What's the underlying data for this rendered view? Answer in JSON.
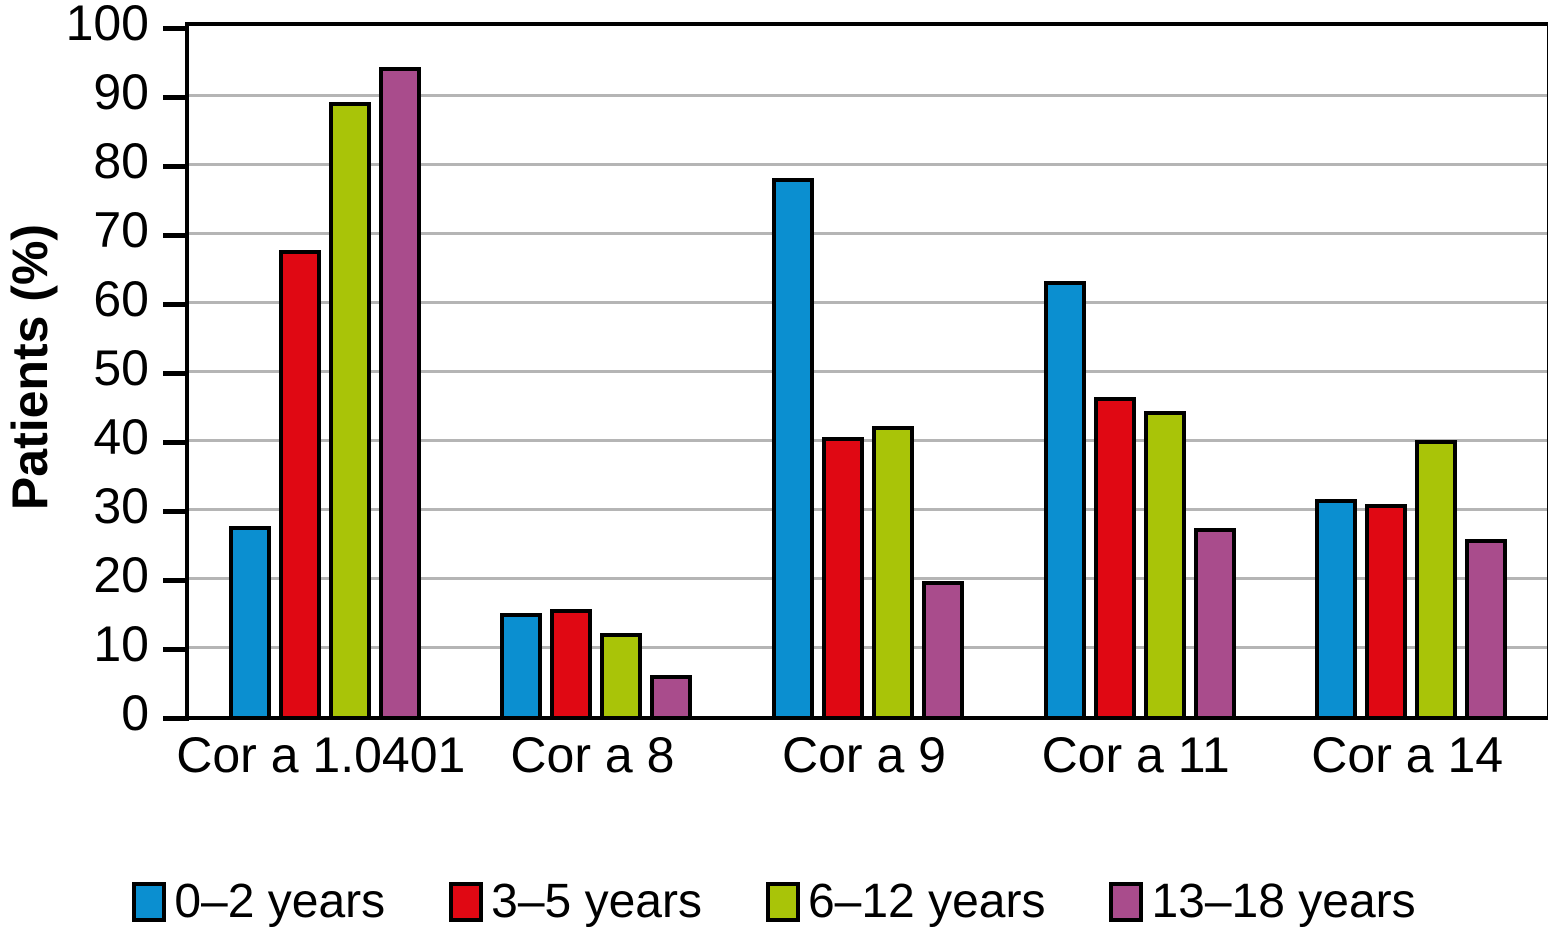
{
  "chart_data": {
    "type": "bar",
    "title": "",
    "xlabel": "",
    "ylabel": "Patients (%)",
    "ylim": [
      0,
      100
    ],
    "yticks": [
      0,
      10,
      20,
      30,
      40,
      50,
      60,
      70,
      80,
      90,
      100
    ],
    "grid": true,
    "gridline_values": [
      10,
      20,
      30,
      40,
      50,
      60,
      70,
      80,
      90
    ],
    "legend_position": "bottom",
    "categories": [
      "Cor a 1.0401",
      "Cor a 8",
      "Cor a 9",
      "Cor a 11",
      "Cor a 14"
    ],
    "series": [
      {
        "name": "0–2 years",
        "color": "#0b8fd0",
        "values": [
          27.5,
          15,
          78,
          63,
          31.5
        ]
      },
      {
        "name": "3–5 years",
        "color": "#e00813",
        "values": [
          67.5,
          15.5,
          40.5,
          46.3,
          30.7
        ]
      },
      {
        "name": "6–12 years",
        "color": "#a9c408",
        "values": [
          89,
          12,
          42,
          44.2,
          40
        ]
      },
      {
        "name": "13–18 years",
        "color": "#a94c8c",
        "values": [
          94,
          6,
          19.5,
          27.3,
          25.6
        ]
      }
    ]
  },
  "colors": {
    "axis": "#000000",
    "gridline": "#b5b5b5",
    "background": "#ffffff"
  }
}
